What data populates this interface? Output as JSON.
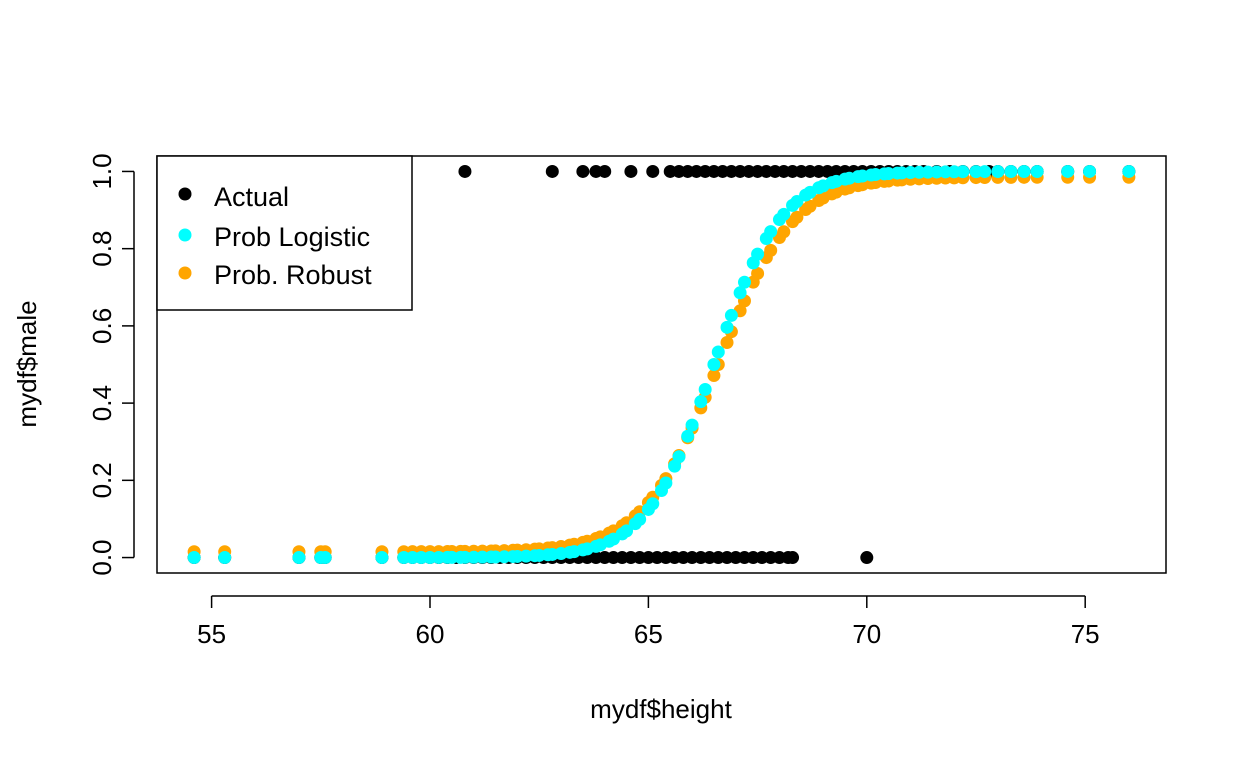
{
  "chart_data": {
    "type": "scatter",
    "xlabel": "mydf$height",
    "ylabel": "mydf$male",
    "xlim": [
      53.75,
      76.85
    ],
    "ylim": [
      -0.04,
      1.04
    ],
    "x_ticks": [
      "55",
      "60",
      "65",
      "70",
      "75"
    ],
    "y_ticks": [
      "0.0",
      "0.2",
      "0.4",
      "0.6",
      "0.8",
      "1.0"
    ],
    "legend": {
      "placement": "top-left",
      "entries": [
        {
          "label": "Actual",
          "color": "#000000"
        },
        {
          "label": "Prob Logistic",
          "color": "#00FFFF"
        },
        {
          "label": "Prob. Robust",
          "color": "#FFA500"
        }
      ]
    },
    "logistic_model": {
      "center": 66.5,
      "slope": 1.3
    },
    "robust_model": {
      "center": 66.6,
      "slope": 1.18,
      "floor": 0.015,
      "ceiling": 0.985
    },
    "heights": [
      54.6,
      55.3,
      57.0,
      57.5,
      57.6,
      58.9,
      59.4,
      59.6,
      59.8,
      60.0,
      60.2,
      60.4,
      60.5,
      60.7,
      60.8,
      61.0,
      61.2,
      61.4,
      61.5,
      61.7,
      61.9,
      62.0,
      62.2,
      62.4,
      62.5,
      62.7,
      62.8,
      63.0,
      63.2,
      63.3,
      63.5,
      63.6,
      63.8,
      63.9,
      64.1,
      64.2,
      64.4,
      64.5,
      64.7,
      64.8,
      65.0,
      65.1,
      65.3,
      65.4,
      65.6,
      65.7,
      65.9,
      66.0,
      66.2,
      66.3,
      66.5,
      66.6,
      66.8,
      66.9,
      67.1,
      67.2,
      67.4,
      67.5,
      67.7,
      67.8,
      68.0,
      68.1,
      68.3,
      68.4,
      68.6,
      68.7,
      68.9,
      69.0,
      69.2,
      69.3,
      69.5,
      69.6,
      69.8,
      69.9,
      70.1,
      70.2,
      70.4,
      70.5,
      70.7,
      70.8,
      71.0,
      71.2,
      71.4,
      71.6,
      71.8,
      72.0,
      72.2,
      72.5,
      72.7,
      73.0,
      73.3,
      73.6,
      73.9,
      74.6,
      75.1,
      76.0
    ],
    "actual_male_heights": [
      60.8,
      62.8,
      63.5,
      63.8,
      64.0,
      64.6,
      65.1,
      65.5,
      65.7,
      65.9,
      66.1,
      66.3,
      66.5,
      66.7,
      66.9,
      67.1,
      67.3,
      67.5,
      67.7,
      67.9,
      68.1,
      68.3,
      68.5,
      68.7,
      68.9,
      69.1,
      69.3,
      69.5,
      69.7,
      69.9,
      70.1,
      70.3,
      70.5,
      70.7,
      70.9,
      71.1,
      71.3,
      71.6,
      71.9,
      72.2,
      72.5,
      72.8,
      73.0,
      73.3,
      73.6,
      73.9,
      74.6,
      75.1,
      76.0
    ],
    "actual_female_heights": [
      54.6,
      55.3,
      57.0,
      57.5,
      57.6,
      58.9,
      59.4,
      59.6,
      59.8,
      60.0,
      60.2,
      60.4,
      60.6,
      60.8,
      61.0,
      61.2,
      61.4,
      61.6,
      61.8,
      62.0,
      62.2,
      62.4,
      62.6,
      62.8,
      63.0,
      63.2,
      63.4,
      63.6,
      63.8,
      64.0,
      64.2,
      64.4,
      64.6,
      64.8,
      65.0,
      65.2,
      65.4,
      65.6,
      65.8,
      66.0,
      66.2,
      66.4,
      66.6,
      66.8,
      67.0,
      67.2,
      67.4,
      67.6,
      67.8,
      68.0,
      68.2,
      68.3,
      70.0
    ]
  }
}
